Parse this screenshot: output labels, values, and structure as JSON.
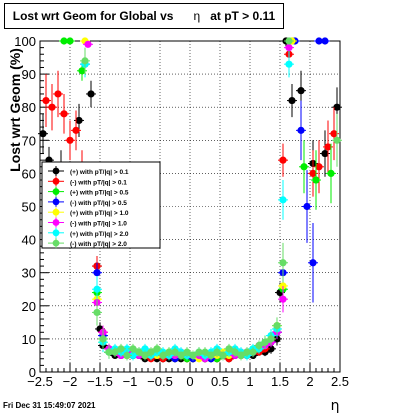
{
  "chart_data": {
    "type": "scatter",
    "title": {
      "prefix": "Lost wrt Geom for Global vs",
      "symbol": "η",
      "suffix": "at pT > 0.11"
    },
    "xlabel": "η",
    "ylabel": "Lost wrt Geom (%)",
    "xlim": [
      -2.5,
      2.5
    ],
    "ylim": [
      0,
      100
    ],
    "xticks": [
      -2.5,
      -2,
      -1.5,
      -1,
      -0.5,
      0,
      0.5,
      1,
      1.5,
      2,
      2.5
    ],
    "xtick_labels": [
      "−2.5",
      "−2",
      "−1.5",
      "−1",
      "−0.5",
      "0",
      "0.5",
      "1",
      "1.5",
      "2",
      "2.5"
    ],
    "yticks": [
      0,
      10,
      20,
      30,
      40,
      50,
      60,
      70,
      80,
      90,
      100
    ],
    "ytick_labels": [
      "0",
      "10",
      "20",
      "30",
      "40",
      "50",
      "60",
      "70",
      "80",
      "90",
      "100"
    ],
    "grid": true,
    "legend_position": "center-left",
    "series": [
      {
        "name": "(+) with pT/|q| > 0.1",
        "color": "#000000",
        "x": [
          -2.45,
          -2.35,
          -2.15,
          -1.85,
          -1.65,
          -1.55,
          -1.5,
          -1.45,
          -1.35,
          -1.25,
          -1.15,
          -1.05,
          -0.95,
          -0.85,
          -0.75,
          -0.65,
          -0.55,
          -0.45,
          -0.35,
          -0.25,
          -0.15,
          -0.05,
          0.05,
          0.15,
          0.25,
          0.35,
          0.45,
          0.55,
          0.65,
          0.75,
          0.85,
          0.95,
          1.05,
          1.15,
          1.25,
          1.35,
          1.45,
          1.5,
          1.6,
          1.7,
          1.85,
          2.05,
          2.25,
          2.45
        ],
        "y": [
          72,
          64,
          62,
          76,
          84,
          32,
          13,
          8,
          6,
          5,
          6,
          5,
          5,
          5,
          4,
          5,
          4,
          4,
          4,
          5,
          4,
          4,
          4,
          5,
          4,
          4,
          4,
          5,
          4,
          5,
          5,
          5,
          5,
          6,
          6,
          7,
          10,
          24,
          100,
          82,
          85,
          63,
          66,
          80
        ],
        "yerr": [
          6,
          4,
          5,
          5,
          4,
          3,
          2,
          1.5,
          1.2,
          1,
          1,
          1,
          1,
          1,
          1,
          1,
          1,
          1,
          1,
          1,
          1,
          1,
          1,
          1,
          1,
          1,
          1,
          1,
          1,
          1,
          1,
          1,
          1,
          1,
          1.2,
          1.5,
          2,
          3,
          2,
          5,
          6,
          7,
          7,
          6
        ]
      },
      {
        "name": "(-) with pT/|q| > 0.1",
        "color": "#ff0000",
        "x": [
          -2.4,
          -2.3,
          -2.2,
          -2.1,
          -2.0,
          -1.9,
          -1.8,
          -1.55,
          -1.45,
          -1.35,
          -1.25,
          -1.15,
          -1.05,
          -0.95,
          -0.85,
          -0.75,
          -0.65,
          -0.55,
          -0.45,
          -0.35,
          -0.25,
          -0.15,
          -0.05,
          0.05,
          0.15,
          0.25,
          0.35,
          0.45,
          0.55,
          0.65,
          0.75,
          0.85,
          0.95,
          1.05,
          1.15,
          1.25,
          1.35,
          1.45,
          1.55,
          1.65,
          2.05,
          2.15,
          2.3,
          2.4
        ],
        "y": [
          82,
          80,
          84,
          78,
          70,
          73,
          62,
          32,
          12,
          7,
          6,
          5,
          5,
          6,
          5,
          5,
          4,
          5,
          4,
          5,
          4,
          5,
          4,
          4,
          5,
          4,
          5,
          4,
          5,
          4,
          5,
          5,
          5,
          6,
          6,
          7,
          9,
          13,
          64,
          96,
          60,
          62,
          68,
          72
        ],
        "yerr": [
          8,
          7,
          7,
          6,
          6,
          6,
          5,
          3,
          2,
          1.5,
          1,
          1,
          1,
          1,
          1,
          1,
          1,
          1,
          1,
          1,
          1,
          1,
          1,
          1,
          1,
          1,
          1,
          1,
          1,
          1,
          1,
          1,
          1,
          1,
          1,
          1.2,
          1.5,
          2,
          5,
          3,
          7,
          8,
          8,
          8
        ]
      },
      {
        "name": "(+) with pT/|q| > 0.5",
        "color": "#00ee00",
        "x": [
          -2.1,
          -2.0,
          -1.8,
          -1.55,
          -1.45,
          -1.35,
          -1.25,
          -1.15,
          -1.05,
          -0.95,
          -0.85,
          -0.75,
          -0.65,
          -0.55,
          -0.45,
          -0.35,
          -0.25,
          -0.15,
          -0.05,
          0.05,
          0.15,
          0.25,
          0.35,
          0.45,
          0.55,
          0.65,
          0.75,
          0.85,
          0.95,
          1.05,
          1.15,
          1.25,
          1.35,
          1.45,
          1.55,
          1.7,
          1.9,
          2.1,
          2.35
        ],
        "y": [
          100,
          100,
          91,
          24,
          10,
          6,
          6,
          5,
          6,
          5,
          6,
          5,
          5,
          6,
          5,
          5,
          4,
          5,
          4,
          4,
          5,
          4,
          5,
          4,
          5,
          5,
          6,
          5,
          6,
          6,
          7,
          8,
          9,
          12,
          25,
          100,
          62,
          58,
          60
        ],
        "yerr": [
          0,
          0,
          3,
          3,
          2,
          1.5,
          1,
          1,
          1,
          1,
          1,
          1,
          1,
          1,
          1,
          1,
          1,
          1,
          1,
          1,
          1,
          1,
          1,
          1,
          1,
          1,
          1,
          1,
          1,
          1,
          1,
          1.2,
          1.5,
          2,
          4,
          0,
          8,
          9,
          9
        ]
      },
      {
        "name": "(-) with pT/|q| > 0.5",
        "color": "#0000ff",
        "x": [
          -1.75,
          -1.55,
          -1.45,
          -1.35,
          -1.25,
          -1.15,
          -1.05,
          -0.95,
          -0.85,
          -0.75,
          -0.65,
          -0.55,
          -0.45,
          -0.35,
          -0.25,
          -0.15,
          -0.05,
          0.05,
          0.15,
          0.25,
          0.35,
          0.45,
          0.55,
          0.65,
          0.75,
          0.85,
          0.95,
          1.05,
          1.15,
          1.25,
          1.35,
          1.45,
          1.55,
          1.75,
          1.85,
          1.95,
          2.05,
          2.15,
          2.25
        ],
        "y": [
          93,
          30,
          11,
          7,
          6,
          5,
          6,
          5,
          5,
          5,
          6,
          5,
          5,
          5,
          4,
          5,
          5,
          4,
          5,
          5,
          4,
          5,
          5,
          6,
          5,
          5,
          6,
          6,
          7,
          8,
          9,
          12,
          30,
          100,
          73,
          50,
          33,
          100,
          100
        ],
        "yerr": [
          3,
          3,
          2,
          1.5,
          1,
          1,
          1,
          1,
          1,
          1,
          1,
          1,
          1,
          1,
          1,
          1,
          1,
          1,
          1,
          1,
          1,
          1,
          1,
          1,
          1,
          1,
          1,
          1,
          1,
          1,
          1.5,
          2,
          4,
          0,
          9,
          11,
          12,
          0,
          0
        ]
      },
      {
        "name": "(+) with pT/|q| > 1.0",
        "color": "#ffff00",
        "x": [
          -1.75,
          -1.55,
          -1.45,
          -1.35,
          -1.25,
          -1.15,
          -1.05,
          -0.95,
          -0.85,
          -0.75,
          -0.65,
          -0.55,
          -0.45,
          -0.35,
          -0.25,
          -0.15,
          -0.05,
          0.05,
          0.15,
          0.25,
          0.35,
          0.45,
          0.55,
          0.65,
          0.75,
          0.85,
          0.95,
          1.05,
          1.15,
          1.25,
          1.35,
          1.45,
          1.55,
          1.7
        ],
        "y": [
          100,
          22,
          9,
          7,
          6,
          6,
          5,
          6,
          6,
          5,
          6,
          5,
          5,
          6,
          5,
          5,
          5,
          5,
          4,
          5,
          5,
          5,
          6,
          5,
          6,
          5,
          6,
          7,
          7,
          8,
          10,
          14,
          26,
          100
        ],
        "yerr": [
          0,
          3,
          2,
          1.5,
          1.2,
          1,
          1,
          1,
          1,
          1,
          1,
          1,
          1,
          1,
          1,
          1,
          1,
          1,
          1,
          1,
          1,
          1,
          1,
          1,
          1,
          1,
          1,
          1,
          1,
          1.2,
          1.5,
          2,
          4,
          0
        ]
      },
      {
        "name": "(-) with pT/|q| > 1.0",
        "color": "#ff00ff",
        "x": [
          -1.7,
          -1.55,
          -1.45,
          -1.35,
          -1.25,
          -1.15,
          -1.05,
          -0.95,
          -0.85,
          -0.75,
          -0.65,
          -0.55,
          -0.45,
          -0.35,
          -0.25,
          -0.15,
          -0.05,
          0.05,
          0.15,
          0.25,
          0.35,
          0.45,
          0.55,
          0.65,
          0.75,
          0.85,
          0.95,
          1.05,
          1.15,
          1.25,
          1.35,
          1.45,
          1.55,
          1.65
        ],
        "y": [
          99,
          21,
          12,
          7,
          6,
          5,
          6,
          6,
          5,
          6,
          5,
          6,
          5,
          5,
          5,
          6,
          5,
          5,
          5,
          4,
          5,
          6,
          5,
          6,
          5,
          6,
          6,
          6,
          8,
          8,
          9,
          12,
          22,
          98
        ],
        "yerr": [
          1,
          3,
          2,
          1.5,
          1.2,
          1,
          1,
          1,
          1,
          1,
          1,
          1,
          1,
          1,
          1,
          1,
          1,
          1,
          1,
          1,
          1,
          1,
          1,
          1,
          1,
          1,
          1,
          1,
          1,
          1.2,
          1.5,
          2,
          4,
          2
        ]
      },
      {
        "name": "(+) with pT/|q| > 2.0",
        "color": "#00ffff",
        "x": [
          -1.75,
          -1.55,
          -1.45,
          -1.35,
          -1.25,
          -1.15,
          -1.05,
          -0.95,
          -0.85,
          -0.75,
          -0.65,
          -0.55,
          -0.45,
          -0.35,
          -0.25,
          -0.15,
          -0.05,
          0.05,
          0.15,
          0.25,
          0.35,
          0.45,
          0.55,
          0.65,
          0.75,
          0.85,
          0.95,
          1.05,
          1.15,
          1.25,
          1.35,
          1.45,
          1.55,
          1.65
        ],
        "y": [
          93,
          25,
          9,
          6,
          7,
          6,
          7,
          5,
          6,
          7,
          5,
          6,
          6,
          5,
          7,
          6,
          5,
          5,
          6,
          5,
          6,
          7,
          5,
          6,
          7,
          6,
          5,
          7,
          7,
          9,
          11,
          13,
          52,
          93
        ],
        "yerr": [
          4,
          4,
          3,
          2,
          1.5,
          1.5,
          1.5,
          1.5,
          1.5,
          1.5,
          1.5,
          1.5,
          1.5,
          1.5,
          1.5,
          1.5,
          1.5,
          1.5,
          1.5,
          1.5,
          1.5,
          1.5,
          1.5,
          1.5,
          1.5,
          1.5,
          1.5,
          1.5,
          1.5,
          2,
          2,
          2.5,
          6,
          4
        ]
      },
      {
        "name": "(-) with pT/|q| > 2.0",
        "color": "#66dd66",
        "x": [
          -1.75,
          -1.55,
          -1.45,
          -1.35,
          -1.25,
          -1.15,
          -1.05,
          -0.95,
          -0.85,
          -0.75,
          -0.65,
          -0.55,
          -0.45,
          -0.35,
          -0.25,
          -0.15,
          -0.05,
          0.05,
          0.15,
          0.25,
          0.35,
          0.45,
          0.55,
          0.65,
          0.75,
          0.85,
          0.95,
          1.05,
          1.15,
          1.25,
          1.35,
          1.45,
          1.55,
          1.65,
          2.45
        ],
        "y": [
          94,
          18,
          10,
          6,
          6,
          7,
          5,
          7,
          6,
          5,
          6,
          7,
          5,
          6,
          6,
          5,
          6,
          5,
          6,
          6,
          5,
          6,
          5,
          7,
          6,
          5,
          6,
          6,
          8,
          9,
          10,
          14,
          33,
          100,
          70
        ],
        "yerr": [
          4,
          4,
          3,
          2,
          1.5,
          1.5,
          1.5,
          1.5,
          1.5,
          1.5,
          1.5,
          1.5,
          1.5,
          1.5,
          1.5,
          1.5,
          1.5,
          1.5,
          1.5,
          1.5,
          1.5,
          1.5,
          1.5,
          1.5,
          1.5,
          1.5,
          1.5,
          1.5,
          1.5,
          2,
          2,
          2.5,
          6,
          0,
          8
        ]
      }
    ]
  },
  "footer": {
    "date": "Fri Dec 31 15:49:07 2021"
  }
}
